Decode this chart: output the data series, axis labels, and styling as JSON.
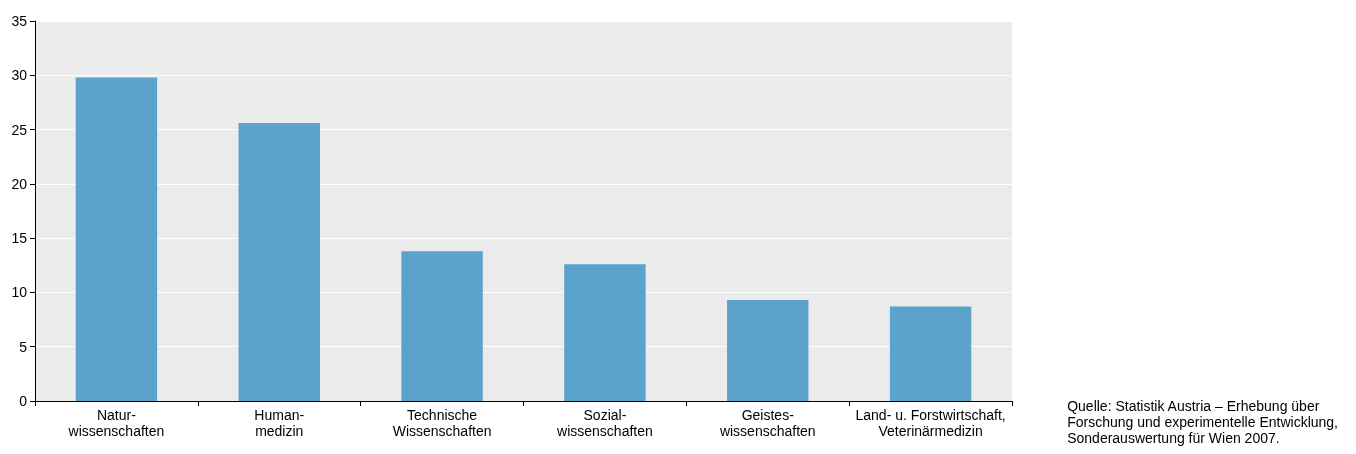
{
  "chart_data": {
    "type": "bar",
    "categories": [
      "Natur-\nwissenschaften",
      "Human-\nmedizin",
      "Technische\nWissenschaften",
      "Sozial-\nwissenschaften",
      "Geistes-\nwissenschaften",
      "Land- u. Forstwirtschaft,\nVeterinärmedizin"
    ],
    "values": [
      29.8,
      25.6,
      13.8,
      12.6,
      9.3,
      8.7
    ],
    "color": "#5ba3cb",
    "ylim": [
      0,
      35
    ],
    "yticks": [
      0,
      5,
      10,
      15,
      20,
      25,
      30,
      35
    ],
    "grid": "y",
    "annotations": [
      "Quelle: Statistik Austria – Erhebung über\nForschung und experimentelle Entwicklung,\nSonderauswertung für Wien 2007."
    ]
  }
}
